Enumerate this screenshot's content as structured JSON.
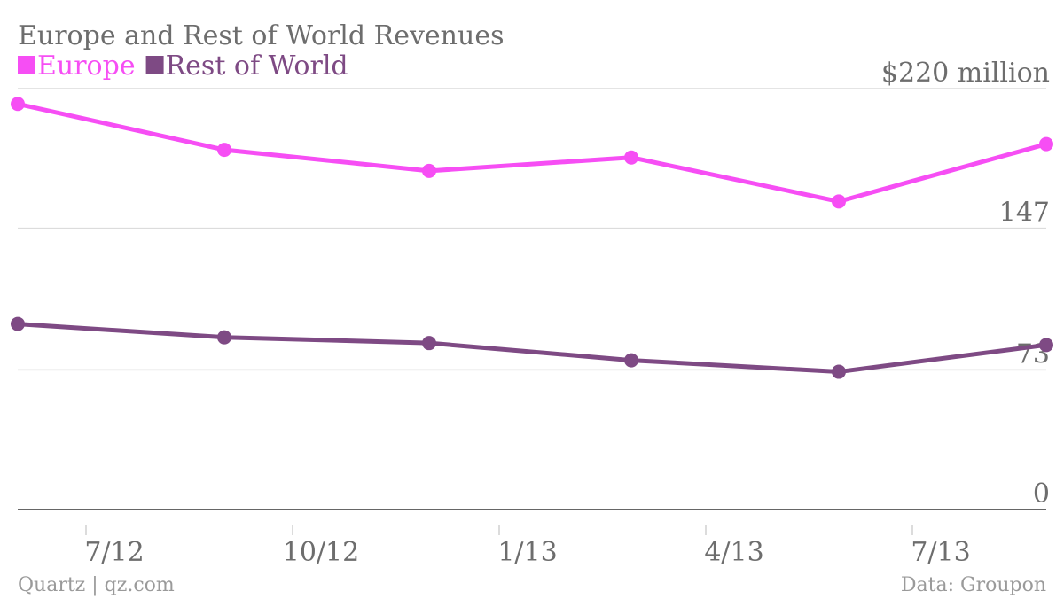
{
  "chart_data": {
    "type": "line",
    "title": "Europe and Rest of World Revenues",
    "x": [
      "2012-Q2",
      "2012-Q3",
      "2012-Q4",
      "2013-Q1",
      "2013-Q2",
      "2013-Q3"
    ],
    "x_tick_labels": [
      "7/12",
      "10/12",
      "1/13",
      "4/13",
      "7/13"
    ],
    "series": [
      {
        "name": "Europe",
        "color": "#f64ef4",
        "values": [
          212,
          188,
          177,
          184,
          161,
          191
        ]
      },
      {
        "name": "Rest of World",
        "color": "#7e4a84",
        "values": [
          97,
          90,
          87,
          78,
          72,
          86
        ]
      }
    ],
    "y_ticks": [
      {
        "value": 220,
        "label": "$220 million"
      },
      {
        "value": 147,
        "label": "147"
      },
      {
        "value": 73,
        "label": "73"
      },
      {
        "value": 0,
        "label": "0"
      }
    ],
    "ylim": [
      0,
      220
    ],
    "grid": true,
    "legend_position": "top-left",
    "source_left": "Quartz | qz.com",
    "source_right": "Data: Groupon"
  }
}
